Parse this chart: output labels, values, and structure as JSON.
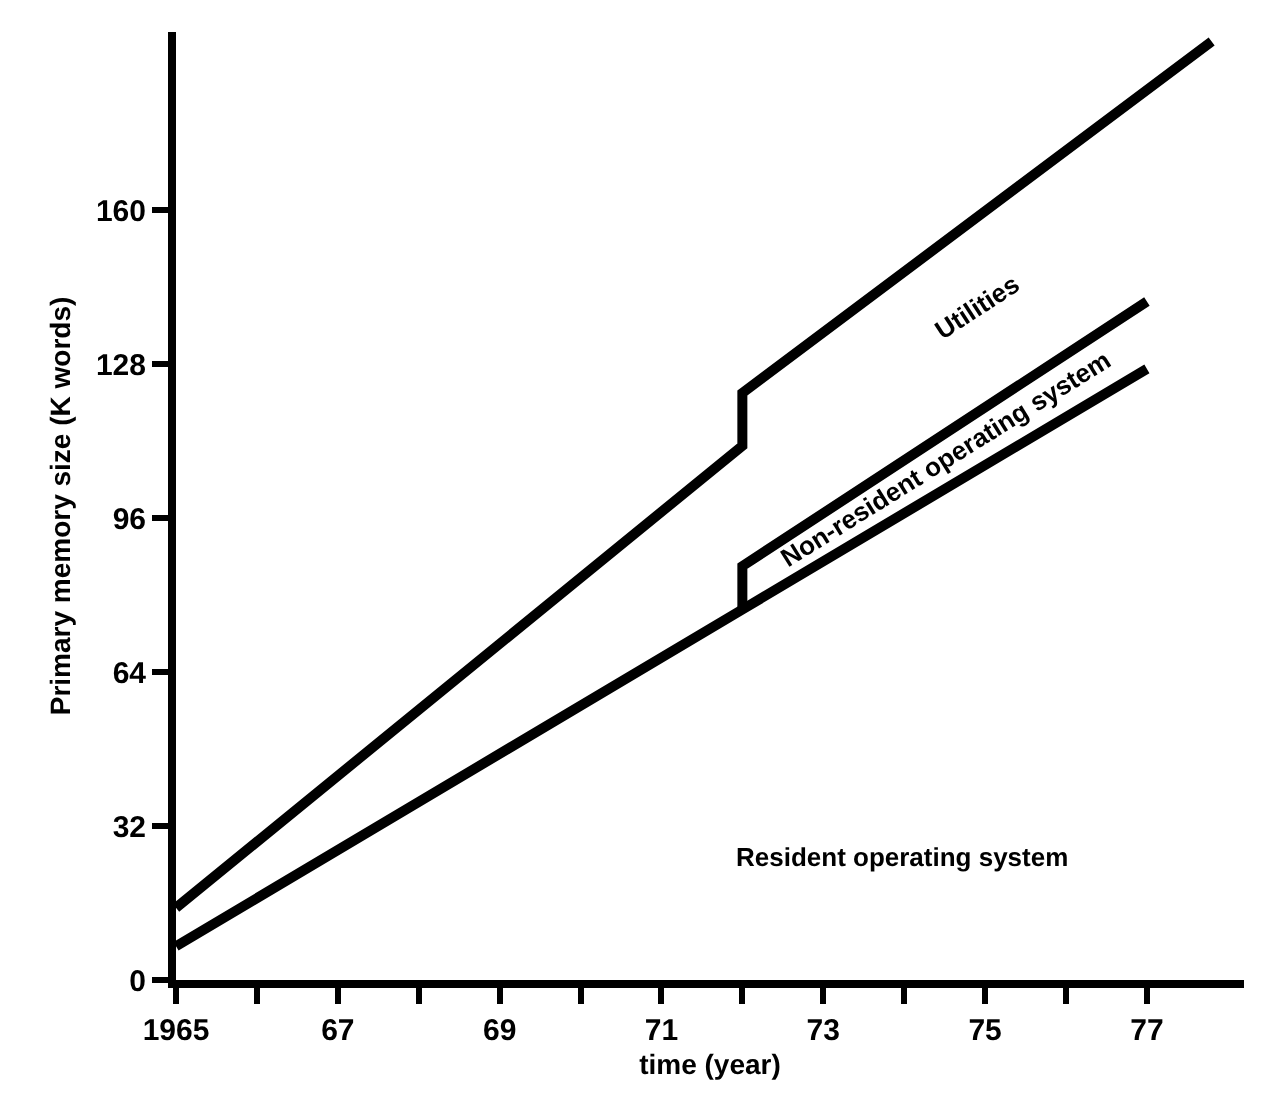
{
  "chart_data": {
    "type": "line",
    "xlabel": "time (year)",
    "ylabel": "Primary memory size (K words)",
    "series": [
      {
        "color": "#000000",
        "x": [
          1965,
          1972,
          1972,
          1977.8
        ],
        "values": [
          15,
          111,
          122,
          195
        ]
      },
      {
        "color": "#000000",
        "x": [
          1972,
          1972,
          1977
        ],
        "values": [
          77,
          86,
          141
        ]
      },
      {
        "color": "#000000",
        "x": [
          1965,
          1972,
          1977
        ],
        "values": [
          7,
          77,
          127
        ]
      }
    ],
    "xlim": [
      1965,
      1978.2
    ],
    "ylim": [
      0,
      197
    ],
    "xticks": [
      {
        "value": 1965,
        "label": "1965"
      },
      {
        "value": 1966,
        "label": null
      },
      {
        "value": 1967,
        "label": "67"
      },
      {
        "value": 1968,
        "label": null
      },
      {
        "value": 1969,
        "label": "69"
      },
      {
        "value": 1970,
        "label": null
      },
      {
        "value": 1971,
        "label": "71"
      },
      {
        "value": 1972,
        "label": null
      },
      {
        "value": 1973,
        "label": "73"
      },
      {
        "value": 1974,
        "label": null
      },
      {
        "value": 1975,
        "label": "75"
      },
      {
        "value": 1976,
        "label": null
      },
      {
        "value": 1977,
        "label": "77"
      }
    ],
    "yticks": [
      0,
      32,
      64,
      96,
      128,
      160
    ],
    "annotations": [
      "Utilities",
      "Non-resident operating system",
      "Resident operating system"
    ],
    "grid": false,
    "marker": "none",
    "line_style": "solid"
  }
}
